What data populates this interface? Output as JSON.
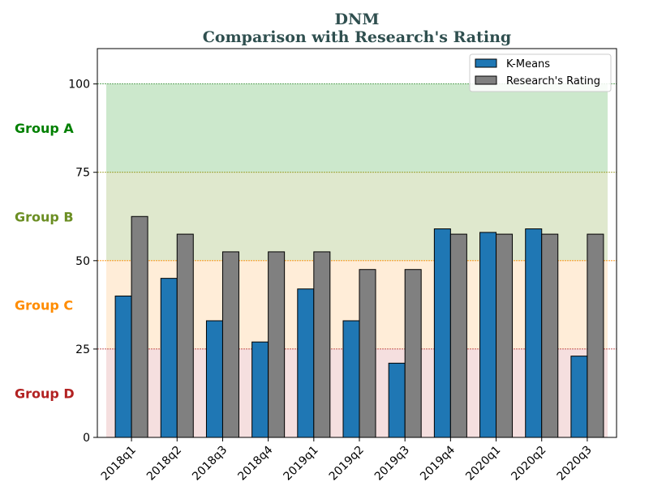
{
  "chart_data": {
    "type": "bar",
    "title": "DNM",
    "subtitle": "Comparison with Research's Rating",
    "xlabel": "",
    "ylabel": "",
    "ylim": [
      0,
      110
    ],
    "yticks": [
      0,
      25,
      50,
      75,
      100
    ],
    "categories": [
      "2018q1",
      "2018q2",
      "2018q3",
      "2018q4",
      "2019q1",
      "2019q2",
      "2019q3",
      "2019q4",
      "2020q1",
      "2020q2",
      "2020q3"
    ],
    "series": [
      {
        "name": "K-Means",
        "color": "#1f77b4",
        "values": [
          40,
          45,
          33,
          27,
          42,
          33,
          21,
          59,
          58,
          59,
          23
        ]
      },
      {
        "name": "Research's Rating",
        "color": "#808080",
        "values": [
          62.5,
          57.5,
          52.5,
          52.5,
          52.5,
          47.5,
          47.5,
          57.5,
          57.5,
          57.5,
          57.5
        ]
      }
    ],
    "legend_position": "top-right",
    "bands": [
      {
        "label": "Group A",
        "from": 75,
        "to": 100,
        "color": "#8fcb8f",
        "line_color": "#2e8b2e",
        "text_color": "#008000"
      },
      {
        "label": "Group B",
        "from": 50,
        "to": 75,
        "color": "#b8cc91",
        "line_color": "#8b8b00",
        "text_color": "#6b8e23"
      },
      {
        "label": "Group C",
        "from": 25,
        "to": 50,
        "color": "#ffd8a8",
        "line_color": "#ff8c00",
        "text_color": "#ff8c00"
      },
      {
        "label": "Group D",
        "from": 0,
        "to": 25,
        "color": "#e8b8b8",
        "line_color": "#b22222",
        "text_color": "#b22222"
      }
    ]
  }
}
